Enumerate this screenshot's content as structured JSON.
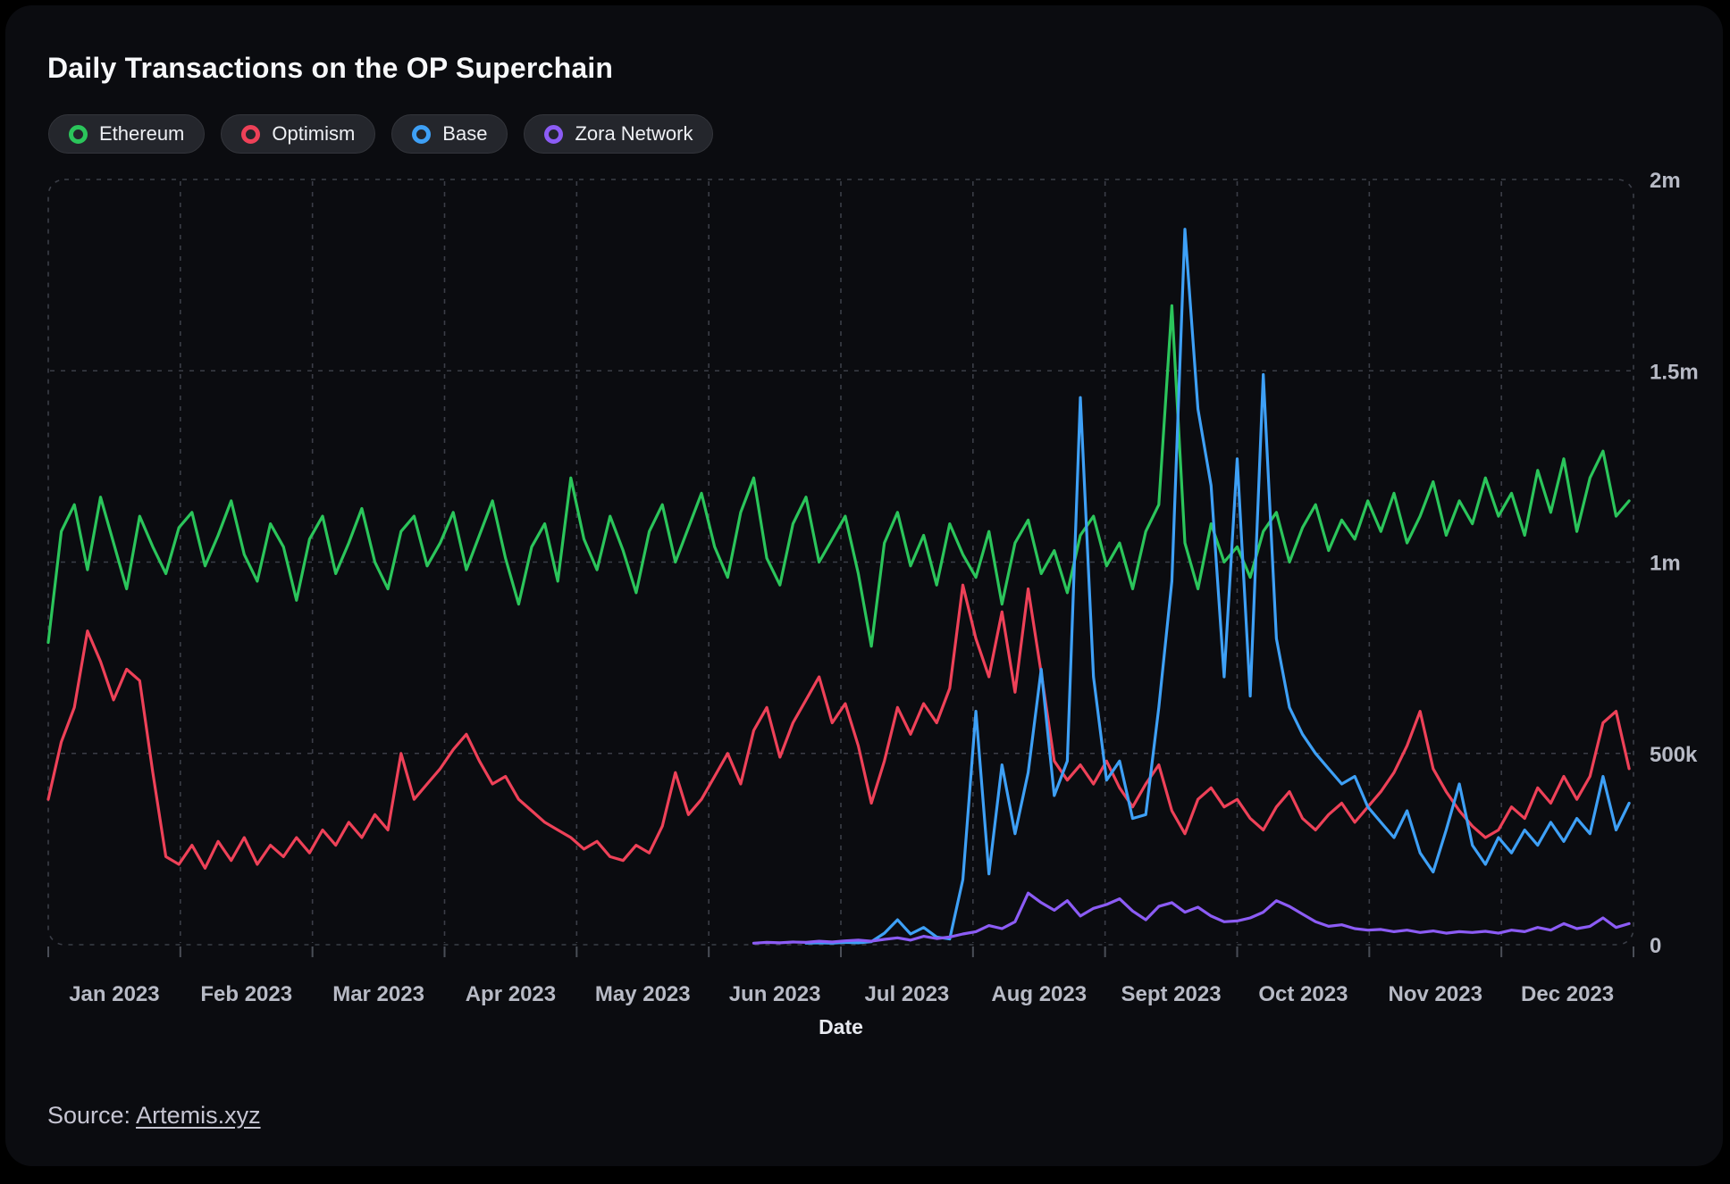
{
  "header": {
    "title": "Daily Transactions on the OP Superchain"
  },
  "legend": {
    "items": [
      {
        "label": "Ethereum",
        "color": "#2bc55b"
      },
      {
        "label": "Optimism",
        "color": "#ee4158"
      },
      {
        "label": "Base",
        "color": "#3ea0f6"
      },
      {
        "label": "Zora Network",
        "color": "#8c5cf5"
      }
    ]
  },
  "footer": {
    "source_prefix": "Source:",
    "source_link": "Artemis.xyz"
  },
  "chart_data": {
    "type": "line",
    "title": "Daily Transactions on the OP Superchain",
    "xlabel": "Date",
    "ylabel": "",
    "unit": "transactions per day",
    "ylim_millions": [
      0,
      2
    ],
    "x_range_days": [
      0,
      364
    ],
    "grid": "dashed",
    "legend_position": "top-left",
    "x_tick_labels": [
      "Jan 2023",
      "Feb 2023",
      "Mar 2023",
      "Apr 2023",
      "May 2023",
      "Jun 2023",
      "Jul 2023",
      "Aug 2023",
      "Sept 2023",
      "Oct 2023",
      "Nov 2023",
      "Dec 2023"
    ],
    "y_ticks": [
      {
        "value_millions": 0,
        "label": "0"
      },
      {
        "value_millions": 0.5,
        "label": "500k"
      },
      {
        "value_millions": 1,
        "label": "1m"
      },
      {
        "value_millions": 1.5,
        "label": "1.5m"
      },
      {
        "value_millions": 2,
        "label": "2m"
      }
    ],
    "sampling_note": "values sampled every 3 days, Jan 1 2023 = day 0, units = millions of daily transactions",
    "series": [
      {
        "name": "Ethereum",
        "color": "#2bc55b",
        "start_day": 0,
        "step_days": 3,
        "values_millions": [
          0.79,
          1.08,
          1.15,
          0.98,
          1.17,
          1.05,
          0.93,
          1.12,
          1.04,
          0.97,
          1.09,
          1.13,
          0.99,
          1.07,
          1.16,
          1.02,
          0.95,
          1.1,
          1.04,
          0.9,
          1.06,
          1.12,
          0.97,
          1.05,
          1.14,
          1.0,
          0.93,
          1.08,
          1.12,
          0.99,
          1.05,
          1.13,
          0.98,
          1.07,
          1.16,
          1.01,
          0.89,
          1.04,
          1.1,
          0.95,
          1.22,
          1.06,
          0.98,
          1.12,
          1.03,
          0.92,
          1.08,
          1.15,
          1.0,
          1.09,
          1.18,
          1.04,
          0.96,
          1.13,
          1.22,
          1.01,
          0.94,
          1.1,
          1.17,
          1.0,
          1.06,
          1.12,
          0.97,
          0.78,
          1.05,
          1.13,
          0.99,
          1.07,
          0.94,
          1.1,
          1.02,
          0.96,
          1.08,
          0.89,
          1.05,
          1.11,
          0.97,
          1.03,
          0.92,
          1.07,
          1.12,
          0.99,
          1.05,
          0.93,
          1.08,
          1.15,
          1.67,
          1.05,
          0.93,
          1.1,
          1.0,
          1.04,
          0.96,
          1.08,
          1.13,
          1.0,
          1.09,
          1.15,
          1.03,
          1.11,
          1.06,
          1.16,
          1.08,
          1.18,
          1.05,
          1.12,
          1.21,
          1.07,
          1.16,
          1.1,
          1.22,
          1.12,
          1.18,
          1.07,
          1.24,
          1.13,
          1.27,
          1.08,
          1.22,
          1.29,
          1.12,
          1.16
        ]
      },
      {
        "name": "Optimism",
        "color": "#ee4158",
        "start_day": 0,
        "step_days": 3,
        "values_millions": [
          0.38,
          0.53,
          0.62,
          0.82,
          0.74,
          0.64,
          0.72,
          0.69,
          0.45,
          0.23,
          0.21,
          0.26,
          0.2,
          0.27,
          0.22,
          0.28,
          0.21,
          0.26,
          0.23,
          0.28,
          0.24,
          0.3,
          0.26,
          0.32,
          0.28,
          0.34,
          0.3,
          0.5,
          0.38,
          0.42,
          0.46,
          0.51,
          0.55,
          0.48,
          0.42,
          0.44,
          0.38,
          0.35,
          0.32,
          0.3,
          0.28,
          0.25,
          0.27,
          0.23,
          0.22,
          0.26,
          0.24,
          0.31,
          0.45,
          0.34,
          0.38,
          0.44,
          0.5,
          0.42,
          0.56,
          0.62,
          0.49,
          0.58,
          0.64,
          0.7,
          0.58,
          0.63,
          0.52,
          0.37,
          0.48,
          0.62,
          0.55,
          0.63,
          0.58,
          0.67,
          0.94,
          0.8,
          0.7,
          0.87,
          0.66,
          0.93,
          0.71,
          0.48,
          0.43,
          0.47,
          0.42,
          0.48,
          0.41,
          0.36,
          0.42,
          0.47,
          0.35,
          0.29,
          0.38,
          0.41,
          0.36,
          0.38,
          0.33,
          0.3,
          0.36,
          0.4,
          0.33,
          0.3,
          0.34,
          0.37,
          0.32,
          0.36,
          0.4,
          0.45,
          0.52,
          0.61,
          0.46,
          0.4,
          0.35,
          0.31,
          0.28,
          0.3,
          0.36,
          0.33,
          0.41,
          0.37,
          0.44,
          0.38,
          0.44,
          0.58,
          0.61,
          0.46
        ]
      },
      {
        "name": "Base",
        "color": "#3ea0f6",
        "start_day": 174,
        "step_days": 3,
        "values_millions": [
          0.004,
          0.005,
          0.004,
          0.006,
          0.005,
          0.008,
          0.03,
          0.065,
          0.028,
          0.045,
          0.02,
          0.015,
          0.17,
          0.61,
          0.185,
          0.47,
          0.29,
          0.45,
          0.72,
          0.39,
          0.48,
          1.43,
          0.7,
          0.43,
          0.48,
          0.33,
          0.34,
          0.62,
          0.95,
          1.87,
          1.4,
          1.2,
          0.7,
          1.27,
          0.65,
          1.49,
          0.8,
          0.62,
          0.55,
          0.5,
          0.46,
          0.42,
          0.44,
          0.36,
          0.32,
          0.28,
          0.35,
          0.24,
          0.19,
          0.3,
          0.42,
          0.26,
          0.21,
          0.28,
          0.24,
          0.3,
          0.26,
          0.32,
          0.27,
          0.33,
          0.29,
          0.44,
          0.3,
          0.37
        ]
      },
      {
        "name": "Zora Network",
        "color": "#8c5cf5",
        "start_day": 162,
        "step_days": 3,
        "values_millions": [
          0.004,
          0.006,
          0.005,
          0.007,
          0.006,
          0.009,
          0.007,
          0.01,
          0.012,
          0.009,
          0.014,
          0.018,
          0.012,
          0.022,
          0.016,
          0.02,
          0.028,
          0.034,
          0.05,
          0.042,
          0.06,
          0.135,
          0.11,
          0.09,
          0.115,
          0.075,
          0.095,
          0.105,
          0.12,
          0.088,
          0.065,
          0.1,
          0.11,
          0.085,
          0.098,
          0.075,
          0.06,
          0.062,
          0.07,
          0.085,
          0.115,
          0.1,
          0.08,
          0.06,
          0.048,
          0.052,
          0.042,
          0.038,
          0.04,
          0.034,
          0.038,
          0.032,
          0.036,
          0.03,
          0.034,
          0.032,
          0.035,
          0.03,
          0.038,
          0.034,
          0.045,
          0.038,
          0.055,
          0.042,
          0.048,
          0.07,
          0.045,
          0.055
        ]
      }
    ]
  },
  "colors": {
    "page_bg": "#000000",
    "card_bg": "#0b0c10",
    "grid": "#3b3e47",
    "tick": "#4a4e57",
    "axis_text": "#b7bac5",
    "xlabel_text": "#e8eaf0",
    "title_text": "#f7f8fa",
    "source_text": "#c6c5d2",
    "pill_bg": "#24262c"
  }
}
